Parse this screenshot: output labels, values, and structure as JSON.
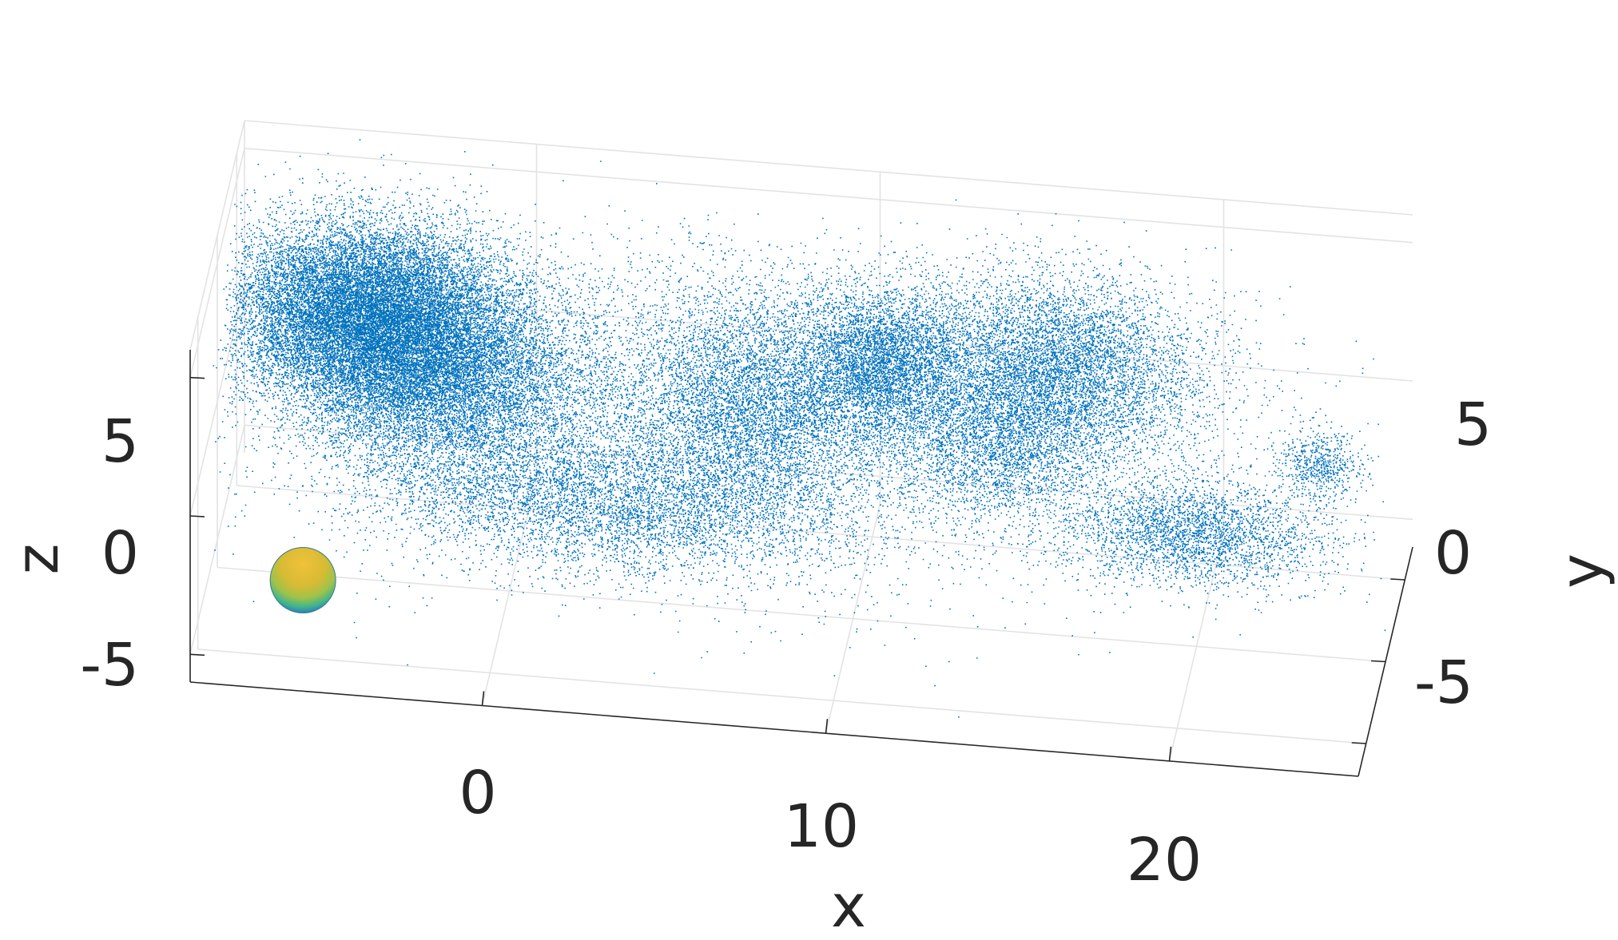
{
  "chart_data": {
    "type": "scatter",
    "title": "",
    "xlabel": "x",
    "ylabel": "y",
    "zlabel": "z",
    "xlim": [
      -8.5,
      25.5
    ],
    "ylim": [
      -7,
      7
    ],
    "zlim": [
      -6,
      6
    ],
    "x_ticks": [
      "0",
      "10",
      "20"
    ],
    "y_ticks": [
      "5",
      "0",
      "-5"
    ],
    "z_ticks": [
      "5",
      "0",
      "-5"
    ],
    "grid": true,
    "point_color": "#0072BD",
    "point_count_estimate": 90000,
    "clusters": [
      {
        "cx": -4.5,
        "cy": 3.5,
        "cz": 1.5,
        "sx": 2.0,
        "sy": 1.6,
        "sz": 1.4,
        "weight": 0.3
      },
      {
        "cx": -2.0,
        "cy": 1.5,
        "cz": 0.5,
        "sx": 2.2,
        "sy": 1.5,
        "sz": 1.5,
        "weight": 0.14
      },
      {
        "cx": 3.0,
        "cy": -2.5,
        "cz": -1.0,
        "sx": 3.5,
        "sy": 1.2,
        "sz": 1.0,
        "weight": 0.08
      },
      {
        "cx": 7.0,
        "cy": 1.5,
        "cz": 0.5,
        "sx": 2.0,
        "sy": 2.0,
        "sz": 1.8,
        "weight": 0.1
      },
      {
        "cx": 10.5,
        "cy": 3.0,
        "cz": 1.5,
        "sx": 1.2,
        "sy": 1.2,
        "sz": 1.2,
        "weight": 0.07
      },
      {
        "cx": 15.5,
        "cy": 3.5,
        "cz": 1.5,
        "sx": 2.2,
        "sy": 1.6,
        "sz": 1.5,
        "weight": 0.12
      },
      {
        "cx": 14.0,
        "cy": 1.0,
        "cz": 0.0,
        "sx": 1.5,
        "sy": 1.2,
        "sz": 1.2,
        "weight": 0.04
      },
      {
        "cx": 20.0,
        "cy": -1.5,
        "cz": -1.0,
        "sx": 2.0,
        "sy": 0.9,
        "sz": 0.8,
        "weight": 0.05
      },
      {
        "cx": 23.5,
        "cy": 0.8,
        "cz": 0.5,
        "sx": 0.6,
        "sy": 0.5,
        "sz": 0.5,
        "weight": 0.01
      },
      {
        "cx": 5.0,
        "cy": 1.0,
        "cz": 0.5,
        "sx": 7.0,
        "sy": 3.0,
        "sz": 2.5,
        "weight": 0.09
      }
    ],
    "sphere": {
      "x": -5.5,
      "y": -4.5,
      "z": -3.5,
      "colors": [
        "#2a7fbf",
        "#3fb58c",
        "#b9c63b",
        "#e6b72a"
      ]
    }
  }
}
